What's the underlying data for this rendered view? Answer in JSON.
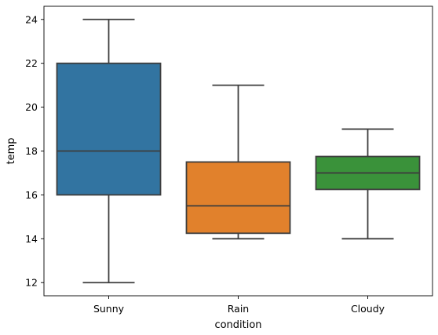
{
  "chart_data": {
    "type": "box",
    "title": "",
    "xlabel": "condition",
    "ylabel": "temp",
    "ylim": [
      11.4,
      24.6
    ],
    "yticks": [
      12,
      14,
      16,
      18,
      20,
      22,
      24
    ],
    "grid": false,
    "categories": [
      "Sunny",
      "Rain",
      "Cloudy"
    ],
    "boxes": [
      {
        "category": "Sunny",
        "whisker_low": 12,
        "q1": 16,
        "median": 18,
        "q3": 22,
        "whisker_high": 24,
        "color": "#3274a1"
      },
      {
        "category": "Rain",
        "whisker_low": 14,
        "q1": 14.25,
        "median": 15.5,
        "q3": 17.5,
        "whisker_high": 21,
        "color": "#e1812c"
      },
      {
        "category": "Cloudy",
        "whisker_low": 14,
        "q1": 16.25,
        "median": 17,
        "q3": 17.75,
        "whisker_high": 19,
        "color": "#3a923a"
      }
    ],
    "line_color": "#3d3d3d"
  }
}
